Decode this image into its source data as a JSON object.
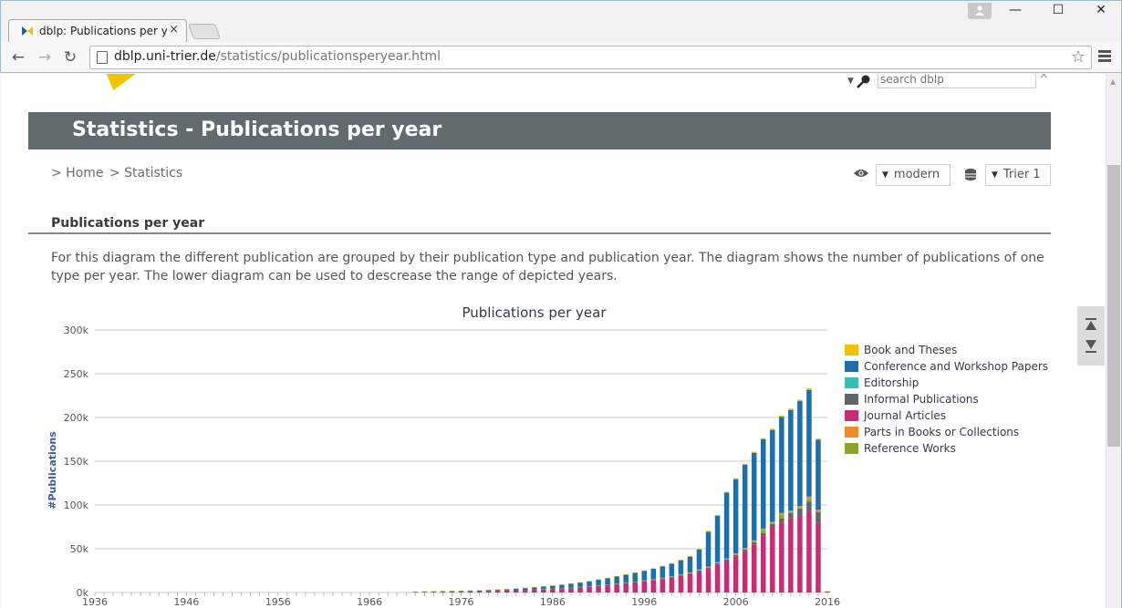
{
  "browser": {
    "tab_title": "dblp: Publications per year",
    "tab_close": "×",
    "url_host": "dblp.uni-trier.de",
    "url_path": "/statistics/publicationsperyear.html",
    "back_glyph": "←",
    "forward_glyph": "→",
    "reload_glyph": "↻",
    "star_glyph": "☆",
    "minimize_glyph": "—",
    "maximize_glyph": "☐",
    "close_glyph": "✕"
  },
  "search": {
    "placeholder": "search dblp",
    "clear_glyph": "×"
  },
  "page": {
    "title": "Statistics - Publications per year",
    "breadcrumb": [
      "> Home",
      "> Statistics"
    ],
    "view_mode": "modern",
    "mirror": "Trier 1",
    "section_title": "Publications per year",
    "description": "For this diagram the different publication are grouped by their publication type and publication year. The diagram shows the number of publications of one type per year. The lower diagram can be used to descrease the range of depicted years."
  },
  "chart_data": {
    "type": "bar",
    "stacked": true,
    "title": "Publications per year",
    "xlabel": "",
    "ylabel": "#Publications",
    "ylim": [
      0,
      300000
    ],
    "y_ticks": [
      "0k",
      "50k",
      "100k",
      "150k",
      "200k",
      "250k",
      "300k"
    ],
    "x_tick_labels": [
      "1936",
      "1946",
      "1956",
      "1966",
      "1976",
      "1986",
      "1996",
      "2006",
      "2016"
    ],
    "grid": "horizontal",
    "legend_position": "right",
    "years": [
      1971,
      1972,
      1973,
      1974,
      1975,
      1976,
      1977,
      1978,
      1979,
      1980,
      1981,
      1982,
      1983,
      1984,
      1985,
      1986,
      1987,
      1988,
      1989,
      1990,
      1991,
      1992,
      1993,
      1994,
      1995,
      1996,
      1997,
      1998,
      1999,
      2000,
      2001,
      2002,
      2003,
      2004,
      2005,
      2006,
      2007,
      2008,
      2009,
      2010,
      2011,
      2012,
      2013,
      2014,
      2015,
      2016
    ],
    "series": [
      {
        "name": "Book and Theses",
        "color": "#f2c000",
        "values": [
          100,
          100,
          100,
          100,
          100,
          100,
          100,
          100,
          100,
          100,
          100,
          200,
          200,
          200,
          200,
          200,
          300,
          300,
          300,
          300,
          400,
          400,
          400,
          500,
          500,
          500,
          600,
          600,
          700,
          700,
          800,
          900,
          900,
          1000,
          1000,
          1100,
          1200,
          1300,
          1400,
          1400,
          1500,
          1600,
          1600,
          1700,
          1500,
          200
        ]
      },
      {
        "name": "Conference and Workshop Papers",
        "color": "#1f6ea8",
        "values": [
          300,
          400,
          500,
          600,
          700,
          800,
          900,
          1000,
          1200,
          1400,
          1600,
          1900,
          2200,
          2600,
          3000,
          3400,
          3900,
          4500,
          5100,
          5800,
          6500,
          7300,
          8200,
          9100,
          10000,
          11000,
          12000,
          13000,
          14500,
          16000,
          18000,
          23000,
          40000,
          53000,
          75000,
          85000,
          95000,
          100000,
          102000,
          105000,
          110000,
          115000,
          120000,
          122000,
          80000,
          200
        ]
      },
      {
        "name": "Editorship",
        "color": "#36bdb4",
        "values": [
          0,
          0,
          0,
          0,
          0,
          0,
          0,
          0,
          0,
          0,
          0,
          0,
          0,
          0,
          100,
          100,
          100,
          100,
          100,
          100,
          200,
          200,
          200,
          200,
          200,
          300,
          300,
          300,
          300,
          400,
          400,
          500,
          500,
          500,
          600,
          600,
          600,
          700,
          700,
          700,
          800,
          800,
          800,
          800,
          700,
          0
        ]
      },
      {
        "name": "Informal Publications",
        "color": "#5f666b",
        "values": [
          0,
          0,
          0,
          0,
          0,
          0,
          0,
          0,
          0,
          0,
          0,
          0,
          0,
          0,
          0,
          0,
          0,
          0,
          0,
          0,
          100,
          100,
          200,
          200,
          300,
          400,
          500,
          600,
          700,
          800,
          1000,
          1100,
          1200,
          1400,
          1600,
          1900,
          2200,
          2500,
          3000,
          3500,
          4500,
          6000,
          8000,
          12000,
          12000,
          200
        ]
      },
      {
        "name": "Journal Articles",
        "color": "#c52d75",
        "values": [
          700,
          800,
          900,
          1000,
          1100,
          1300,
          1400,
          1600,
          1800,
          2000,
          2300,
          2600,
          3000,
          3400,
          3800,
          4300,
          4800,
          5400,
          6100,
          6800,
          7600,
          8500,
          9500,
          10500,
          11600,
          12700,
          14000,
          15500,
          17000,
          19000,
          21000,
          24000,
          27000,
          32000,
          36000,
          41000,
          47000,
          55000,
          65000,
          75000,
          80000,
          85000,
          88000,
          92000,
          80000,
          800
        ]
      },
      {
        "name": "Parts in Books or Collections",
        "color": "#ef8a2c",
        "values": [
          0,
          0,
          0,
          0,
          0,
          0,
          0,
          0,
          0,
          0,
          0,
          0,
          0,
          0,
          100,
          100,
          100,
          200,
          200,
          200,
          200,
          300,
          300,
          300,
          400,
          400,
          400,
          500,
          500,
          600,
          600,
          700,
          800,
          800,
          900,
          1000,
          1100,
          1200,
          1300,
          1400,
          1500,
          1600,
          1700,
          1800,
          1600,
          100
        ]
      },
      {
        "name": "Reference Works",
        "color": "#8aa52b",
        "values": [
          0,
          0,
          0,
          0,
          0,
          0,
          0,
          0,
          0,
          0,
          0,
          0,
          0,
          0,
          0,
          0,
          0,
          0,
          0,
          0,
          0,
          0,
          0,
          0,
          0,
          0,
          0,
          0,
          0,
          0,
          0,
          0,
          0,
          0,
          0,
          0,
          100,
          200,
          3000,
          200,
          4000,
          200,
          200,
          3000,
          200,
          0
        ]
      }
    ]
  }
}
